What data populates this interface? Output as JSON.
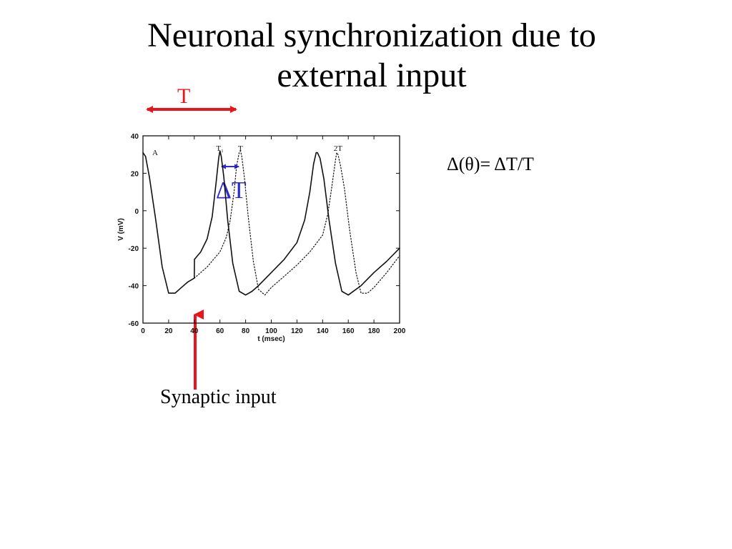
{
  "slide": {
    "title_line1": "Neuronal synchronization due to",
    "title_line2": "external input",
    "formula": "Δ(θ)= ΔT/T",
    "synaptic_label": "Synaptic input",
    "period_label": "T",
    "delta_label": "ΔT"
  },
  "colors": {
    "red_arrow": "#e8161b",
    "blue_arrow": "#2c2ccc",
    "trace": "#111111"
  },
  "chart_data": {
    "type": "line",
    "title": "",
    "xlabel": "t (msec)",
    "ylabel": "V (mV)",
    "xlim": [
      0,
      200
    ],
    "ylim": [
      -60,
      40
    ],
    "xticks": [
      0,
      20,
      40,
      60,
      80,
      100,
      120,
      140,
      160,
      180,
      200
    ],
    "yticks": [
      -60,
      -40,
      -20,
      0,
      20,
      40
    ],
    "grid": false,
    "legend": "none",
    "panel_label": "A",
    "annotations": [
      {
        "text": "T₁",
        "x": 60
      },
      {
        "text": "T",
        "x": 76
      },
      {
        "text": "2T",
        "x": 152
      }
    ],
    "series": [
      {
        "style": "solid",
        "x": [
          0,
          2,
          5,
          10,
          15,
          20,
          25,
          30,
          35,
          40,
          40.1,
          45,
          50,
          54,
          57,
          59,
          60,
          61,
          63,
          66,
          70,
          75,
          80,
          85,
          90,
          100,
          110,
          120,
          126,
          130,
          133,
          135,
          136,
          138,
          141,
          145,
          150,
          155,
          160,
          170,
          180,
          190,
          200
        ],
        "y": [
          31,
          29,
          18,
          -5,
          -30,
          -44,
          -44,
          -41,
          -38,
          -36,
          -26,
          -22,
          -15,
          -3,
          15,
          28,
          32,
          29,
          18,
          -5,
          -28,
          -43,
          -45,
          -43,
          -40,
          -33,
          -26,
          -17,
          -5,
          10,
          25,
          31,
          31,
          28,
          17,
          -5,
          -28,
          -43,
          -45,
          -40,
          -33,
          -27,
          -20
        ]
      },
      {
        "style": "dotted",
        "x": [
          40,
          45,
          50,
          55,
          60,
          65,
          68,
          71,
          73,
          75,
          76,
          77,
          79,
          82,
          86,
          90,
          95,
          100,
          110,
          120,
          130,
          140,
          144,
          147,
          150,
          151,
          152,
          154,
          157,
          161,
          166,
          170,
          175,
          180,
          190,
          200
        ],
        "y": [
          -36,
          -33,
          -30,
          -26,
          -22,
          -14,
          -5,
          10,
          24,
          31,
          32,
          29,
          18,
          -3,
          -27,
          -42,
          -45,
          -41,
          -35,
          -29,
          -22,
          -13,
          -2,
          12,
          27,
          31,
          30,
          24,
          12,
          -10,
          -33,
          -44,
          -44,
          -41,
          -33,
          -24
        ]
      }
    ]
  }
}
